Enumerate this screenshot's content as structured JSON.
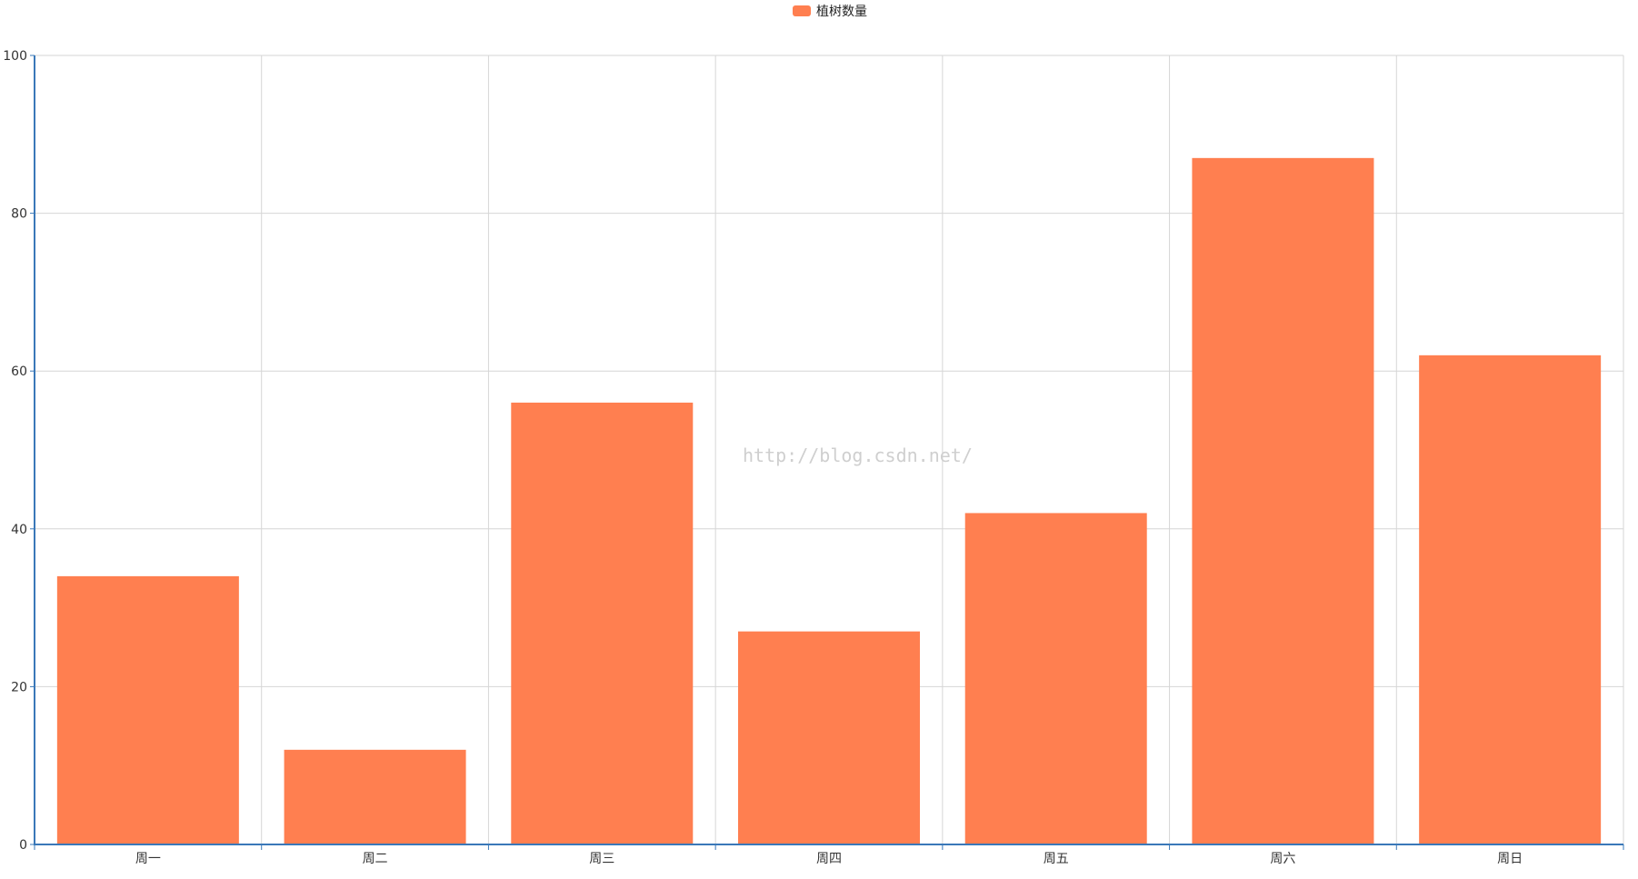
{
  "colors": {
    "bar": "#ff7f50",
    "grid": "#d6d6d6",
    "axis": "#3a78b8",
    "background": "#ffffff"
  },
  "legend": {
    "label": "植树数量"
  },
  "watermark": "http://blog.csdn.net/",
  "chart_data": {
    "type": "bar",
    "categories": [
      "周一",
      "周二",
      "周三",
      "周四",
      "周五",
      "周六",
      "周日"
    ],
    "series": [
      {
        "name": "植树数量",
        "values": [
          34,
          12,
          56,
          27,
          42,
          87,
          62
        ]
      }
    ],
    "title": "",
    "xlabel": "",
    "ylabel": "",
    "ylim": [
      0,
      100
    ],
    "yticks": [
      0,
      20,
      40,
      60,
      80,
      100
    ],
    "grid": true,
    "legend_position": "top-center"
  }
}
